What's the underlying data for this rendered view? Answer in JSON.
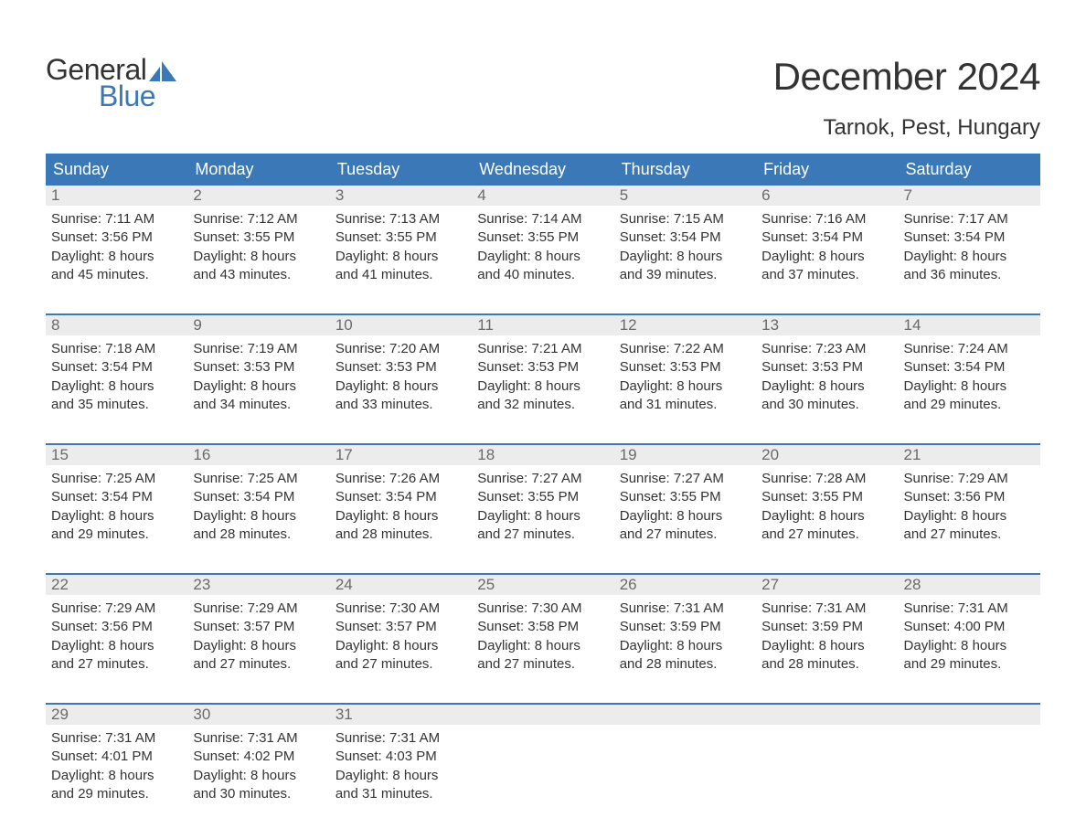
{
  "logo": {
    "text_general": "General",
    "text_blue": "Blue",
    "sail_color": "#3b78b8"
  },
  "title": {
    "month": "December 2024",
    "location": "Tarnok, Pest, Hungary"
  },
  "colors": {
    "header_bg": "#3b78b8",
    "header_text": "#ffffff",
    "daynum_bg": "#ececec",
    "daynum_text": "#6a6a6a",
    "body_text": "#333333",
    "week_border": "#3b78b8",
    "page_bg": "#ffffff"
  },
  "fonts": {
    "title_size": 42,
    "location_size": 24,
    "header_size": 18,
    "daynum_size": 17,
    "content_size": 15
  },
  "day_headers": [
    "Sunday",
    "Monday",
    "Tuesday",
    "Wednesday",
    "Thursday",
    "Friday",
    "Saturday"
  ],
  "weeks": [
    [
      {
        "num": "1",
        "sunrise": "Sunrise: 7:11 AM",
        "sunset": "Sunset: 3:56 PM",
        "dl1": "Daylight: 8 hours",
        "dl2": "and 45 minutes."
      },
      {
        "num": "2",
        "sunrise": "Sunrise: 7:12 AM",
        "sunset": "Sunset: 3:55 PM",
        "dl1": "Daylight: 8 hours",
        "dl2": "and 43 minutes."
      },
      {
        "num": "3",
        "sunrise": "Sunrise: 7:13 AM",
        "sunset": "Sunset: 3:55 PM",
        "dl1": "Daylight: 8 hours",
        "dl2": "and 41 minutes."
      },
      {
        "num": "4",
        "sunrise": "Sunrise: 7:14 AM",
        "sunset": "Sunset: 3:55 PM",
        "dl1": "Daylight: 8 hours",
        "dl2": "and 40 minutes."
      },
      {
        "num": "5",
        "sunrise": "Sunrise: 7:15 AM",
        "sunset": "Sunset: 3:54 PM",
        "dl1": "Daylight: 8 hours",
        "dl2": "and 39 minutes."
      },
      {
        "num": "6",
        "sunrise": "Sunrise: 7:16 AM",
        "sunset": "Sunset: 3:54 PM",
        "dl1": "Daylight: 8 hours",
        "dl2": "and 37 minutes."
      },
      {
        "num": "7",
        "sunrise": "Sunrise: 7:17 AM",
        "sunset": "Sunset: 3:54 PM",
        "dl1": "Daylight: 8 hours",
        "dl2": "and 36 minutes."
      }
    ],
    [
      {
        "num": "8",
        "sunrise": "Sunrise: 7:18 AM",
        "sunset": "Sunset: 3:54 PM",
        "dl1": "Daylight: 8 hours",
        "dl2": "and 35 minutes."
      },
      {
        "num": "9",
        "sunrise": "Sunrise: 7:19 AM",
        "sunset": "Sunset: 3:53 PM",
        "dl1": "Daylight: 8 hours",
        "dl2": "and 34 minutes."
      },
      {
        "num": "10",
        "sunrise": "Sunrise: 7:20 AM",
        "sunset": "Sunset: 3:53 PM",
        "dl1": "Daylight: 8 hours",
        "dl2": "and 33 minutes."
      },
      {
        "num": "11",
        "sunrise": "Sunrise: 7:21 AM",
        "sunset": "Sunset: 3:53 PM",
        "dl1": "Daylight: 8 hours",
        "dl2": "and 32 minutes."
      },
      {
        "num": "12",
        "sunrise": "Sunrise: 7:22 AM",
        "sunset": "Sunset: 3:53 PM",
        "dl1": "Daylight: 8 hours",
        "dl2": "and 31 minutes."
      },
      {
        "num": "13",
        "sunrise": "Sunrise: 7:23 AM",
        "sunset": "Sunset: 3:53 PM",
        "dl1": "Daylight: 8 hours",
        "dl2": "and 30 minutes."
      },
      {
        "num": "14",
        "sunrise": "Sunrise: 7:24 AM",
        "sunset": "Sunset: 3:54 PM",
        "dl1": "Daylight: 8 hours",
        "dl2": "and 29 minutes."
      }
    ],
    [
      {
        "num": "15",
        "sunrise": "Sunrise: 7:25 AM",
        "sunset": "Sunset: 3:54 PM",
        "dl1": "Daylight: 8 hours",
        "dl2": "and 29 minutes."
      },
      {
        "num": "16",
        "sunrise": "Sunrise: 7:25 AM",
        "sunset": "Sunset: 3:54 PM",
        "dl1": "Daylight: 8 hours",
        "dl2": "and 28 minutes."
      },
      {
        "num": "17",
        "sunrise": "Sunrise: 7:26 AM",
        "sunset": "Sunset: 3:54 PM",
        "dl1": "Daylight: 8 hours",
        "dl2": "and 28 minutes."
      },
      {
        "num": "18",
        "sunrise": "Sunrise: 7:27 AM",
        "sunset": "Sunset: 3:55 PM",
        "dl1": "Daylight: 8 hours",
        "dl2": "and 27 minutes."
      },
      {
        "num": "19",
        "sunrise": "Sunrise: 7:27 AM",
        "sunset": "Sunset: 3:55 PM",
        "dl1": "Daylight: 8 hours",
        "dl2": "and 27 minutes."
      },
      {
        "num": "20",
        "sunrise": "Sunrise: 7:28 AM",
        "sunset": "Sunset: 3:55 PM",
        "dl1": "Daylight: 8 hours",
        "dl2": "and 27 minutes."
      },
      {
        "num": "21",
        "sunrise": "Sunrise: 7:29 AM",
        "sunset": "Sunset: 3:56 PM",
        "dl1": "Daylight: 8 hours",
        "dl2": "and 27 minutes."
      }
    ],
    [
      {
        "num": "22",
        "sunrise": "Sunrise: 7:29 AM",
        "sunset": "Sunset: 3:56 PM",
        "dl1": "Daylight: 8 hours",
        "dl2": "and 27 minutes."
      },
      {
        "num": "23",
        "sunrise": "Sunrise: 7:29 AM",
        "sunset": "Sunset: 3:57 PM",
        "dl1": "Daylight: 8 hours",
        "dl2": "and 27 minutes."
      },
      {
        "num": "24",
        "sunrise": "Sunrise: 7:30 AM",
        "sunset": "Sunset: 3:57 PM",
        "dl1": "Daylight: 8 hours",
        "dl2": "and 27 minutes."
      },
      {
        "num": "25",
        "sunrise": "Sunrise: 7:30 AM",
        "sunset": "Sunset: 3:58 PM",
        "dl1": "Daylight: 8 hours",
        "dl2": "and 27 minutes."
      },
      {
        "num": "26",
        "sunrise": "Sunrise: 7:31 AM",
        "sunset": "Sunset: 3:59 PM",
        "dl1": "Daylight: 8 hours",
        "dl2": "and 28 minutes."
      },
      {
        "num": "27",
        "sunrise": "Sunrise: 7:31 AM",
        "sunset": "Sunset: 3:59 PM",
        "dl1": "Daylight: 8 hours",
        "dl2": "and 28 minutes."
      },
      {
        "num": "28",
        "sunrise": "Sunrise: 7:31 AM",
        "sunset": "Sunset: 4:00 PM",
        "dl1": "Daylight: 8 hours",
        "dl2": "and 29 minutes."
      }
    ],
    [
      {
        "num": "29",
        "sunrise": "Sunrise: 7:31 AM",
        "sunset": "Sunset: 4:01 PM",
        "dl1": "Daylight: 8 hours",
        "dl2": "and 29 minutes."
      },
      {
        "num": "30",
        "sunrise": "Sunrise: 7:31 AM",
        "sunset": "Sunset: 4:02 PM",
        "dl1": "Daylight: 8 hours",
        "dl2": "and 30 minutes."
      },
      {
        "num": "31",
        "sunrise": "Sunrise: 7:31 AM",
        "sunset": "Sunset: 4:03 PM",
        "dl1": "Daylight: 8 hours",
        "dl2": "and 31 minutes."
      },
      {
        "empty": true
      },
      {
        "empty": true
      },
      {
        "empty": true
      },
      {
        "empty": true
      }
    ]
  ]
}
